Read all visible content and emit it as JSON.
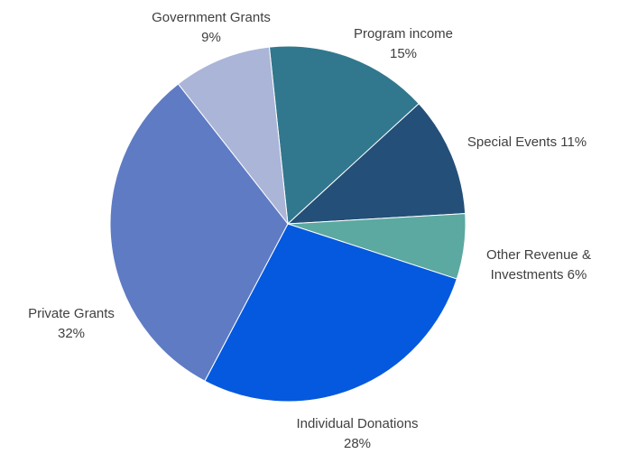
{
  "chart_data": {
    "type": "pie",
    "title": "",
    "slices": [
      {
        "label": "Program income",
        "value": 15,
        "display": "15%",
        "color": "#31788E"
      },
      {
        "label": "Special Events",
        "value": 11,
        "display": "11%",
        "color": "#244F78"
      },
      {
        "label": "Other Revenue & Investments",
        "value": 6,
        "display": "6%",
        "color": "#5BA9A0"
      },
      {
        "label": "Individual Donations",
        "value": 28,
        "display": "28%",
        "color": "#0459DE"
      },
      {
        "label": "Private Grants",
        "value": 32,
        "display": "32%",
        "color": "#5F7BC4"
      },
      {
        "label": "Government Grants",
        "value": 9,
        "display": "9%",
        "color": "#ABB5D8"
      }
    ]
  }
}
